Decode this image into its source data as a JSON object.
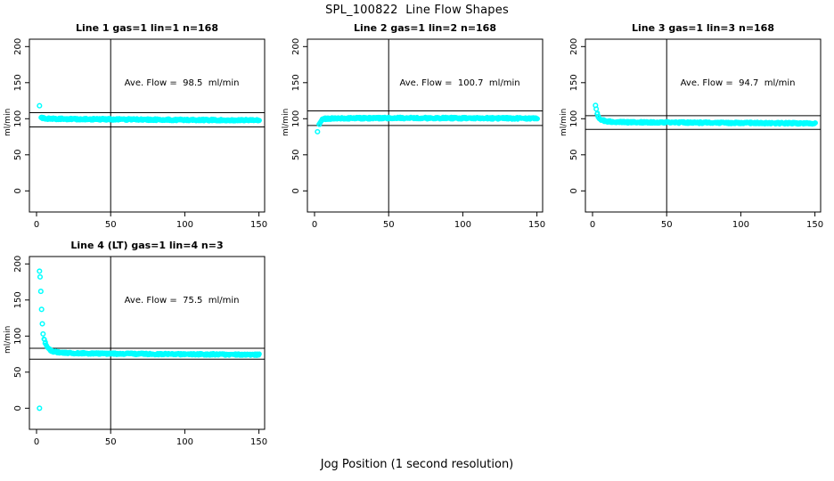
{
  "page_title": "SPL_100822  Line Flow Shapes",
  "xlabel": "Jog Position (1 second resolution)",
  "colors": {
    "points": "#00ffff",
    "axis": "#000000",
    "background": "#ffffff"
  },
  "chart_data": [
    {
      "type": "scatter",
      "title": "Line 1 gas=1 lin=1 n=168",
      "annotation": "Ave. Flow =  98.5  ml/min",
      "ave_flow_ml_min": 98.5,
      "gas": 1,
      "lin": 1,
      "n": 168,
      "ylabel": "ml/min",
      "xticks": [
        0,
        50,
        100,
        150
      ],
      "yticks": [
        0,
        50,
        100,
        150,
        200
      ],
      "xlim": [
        -5,
        155
      ],
      "ylim": [
        -35,
        212
      ],
      "vline_x": 50,
      "hlines": [
        108.4,
        88.7
      ],
      "isolated_points": [
        [
          2,
          118
        ]
      ],
      "band_profile": [
        [
          3,
          101.5
        ],
        [
          5,
          100.2
        ],
        [
          20,
          99.6
        ],
        [
          60,
          99.0
        ],
        [
          100,
          98.4
        ],
        [
          150,
          97.9
        ]
      ],
      "band_thickness": 2.6
    },
    {
      "type": "scatter",
      "title": "Line 2 gas=1 lin=2 n=168",
      "annotation": "Ave. Flow =  100.7  ml/min",
      "ave_flow_ml_min": 100.7,
      "gas": 1,
      "lin": 2,
      "n": 168,
      "ylabel": "ml/min",
      "xticks": [
        0,
        50,
        100,
        150
      ],
      "yticks": [
        0,
        50,
        100,
        150,
        200
      ],
      "xlim": [
        -5,
        155
      ],
      "ylim": [
        -35,
        212
      ],
      "vline_x": 50,
      "hlines": [
        110.8,
        90.6
      ],
      "isolated_points": [
        [
          2,
          82
        ]
      ],
      "band_profile": [
        [
          3,
          92
        ],
        [
          4,
          96
        ],
        [
          5,
          98.5
        ],
        [
          7,
          100
        ],
        [
          12,
          100.5
        ],
        [
          50,
          100.9
        ],
        [
          100,
          100.8
        ],
        [
          150,
          100.4
        ]
      ],
      "band_thickness": 2.6
    },
    {
      "type": "scatter",
      "title": "Line 3 gas=1 lin=3 n=168",
      "annotation": "Ave. Flow =  94.7  ml/min",
      "ave_flow_ml_min": 94.7,
      "gas": 1,
      "lin": 3,
      "n": 168,
      "ylabel": "ml/min",
      "xticks": [
        0,
        50,
        100,
        150
      ],
      "yticks": [
        0,
        50,
        100,
        150,
        200
      ],
      "xlim": [
        -5,
        155
      ],
      "ylim": [
        -35,
        212
      ],
      "vline_x": 50,
      "hlines": [
        104.2,
        85.2
      ],
      "isolated_points": [
        [
          2,
          118.5
        ],
        [
          2.5,
          113.5
        ]
      ],
      "band_profile": [
        [
          3,
          107
        ],
        [
          4,
          102
        ],
        [
          6,
          98.5
        ],
        [
          9,
          96.3
        ],
        [
          15,
          95.3
        ],
        [
          50,
          94.8
        ],
        [
          100,
          94.2
        ],
        [
          150,
          93.6
        ]
      ],
      "band_thickness": 2.6
    },
    {
      "type": "scatter",
      "title": "Line 4 (LT) gas=1 lin=4 n=3",
      "annotation": "Ave. Flow =  75.5  ml/min",
      "ave_flow_ml_min": 75.5,
      "gas": 1,
      "lin": 4,
      "n": 3,
      "ylabel": "ml/min",
      "xticks": [
        0,
        50,
        100,
        150
      ],
      "yticks": [
        0,
        50,
        100,
        150,
        200
      ],
      "xlim": [
        -5,
        155
      ],
      "ylim": [
        -35,
        212
      ],
      "vline_x": 50,
      "hlines": [
        83.1,
        68.0
      ],
      "isolated_points": [
        [
          2,
          190
        ],
        [
          2.4,
          182
        ],
        [
          2.9,
          162
        ],
        [
          3.4,
          137
        ],
        [
          3.9,
          117
        ],
        [
          4.4,
          103
        ],
        [
          2,
          0
        ]
      ],
      "band_profile": [
        [
          5,
          96
        ],
        [
          6,
          89
        ],
        [
          7,
          85
        ],
        [
          8,
          82.5
        ],
        [
          10,
          79.5
        ],
        [
          13,
          78
        ],
        [
          20,
          76.6
        ],
        [
          40,
          75.8
        ],
        [
          80,
          75.1
        ],
        [
          120,
          74.7
        ],
        [
          150,
          74.3
        ]
      ],
      "band_thickness": 2.4
    }
  ]
}
